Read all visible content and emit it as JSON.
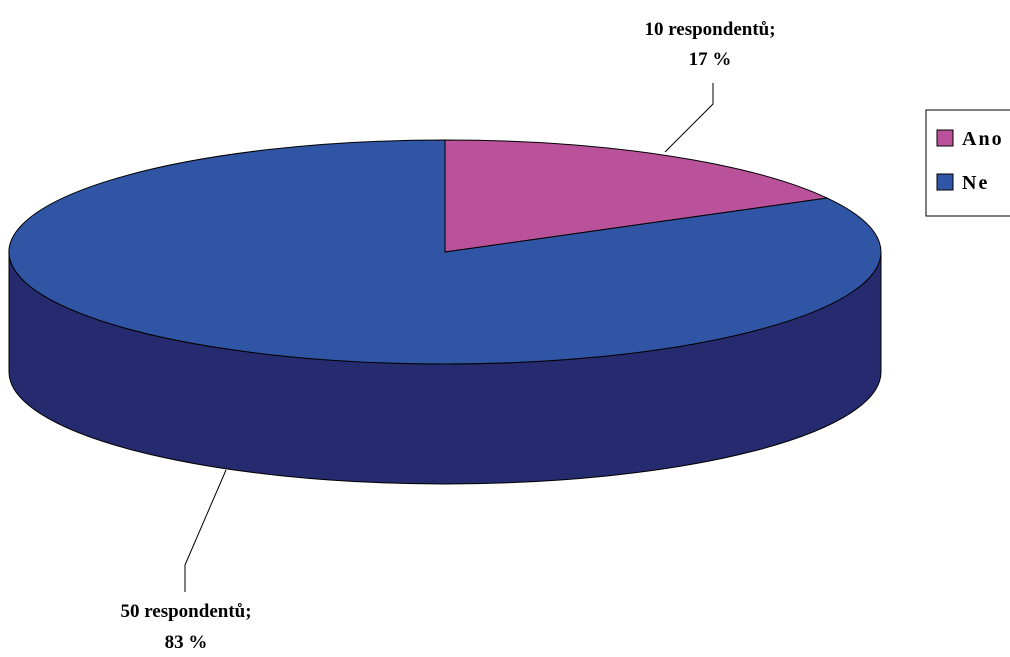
{
  "chart_data": {
    "type": "pie",
    "style": "3d",
    "slices": [
      {
        "name": "Ano",
        "respondents": 10,
        "percent": 17,
        "color": "#B9529A",
        "side_color": "#7A3366",
        "label_line1": "10 respondentů;",
        "label_line2": "17 %"
      },
      {
        "name": "Ne",
        "respondents": 50,
        "percent": 83,
        "color": "#3055A4",
        "side_color": "#262A6E",
        "label_line1": "50 respondentů;",
        "label_line2": "83 %"
      }
    ],
    "legend": {
      "placement": "right",
      "items": [
        {
          "label": "Ano",
          "color": "#B9529A"
        },
        {
          "label": "Ne",
          "color": "#3055A4"
        }
      ]
    }
  }
}
